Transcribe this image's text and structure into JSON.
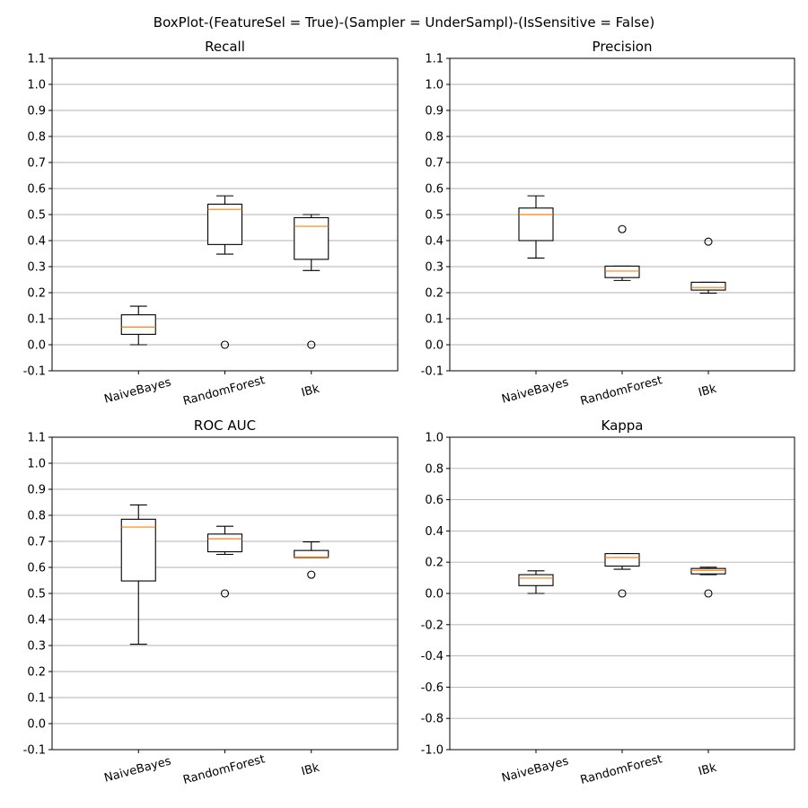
{
  "figure": {
    "title": "BoxPlot-(FeatureSel = True)-(Sampler = UnderSampl)-(IsSensitive = False)"
  },
  "chart_data": [
    {
      "type": "box",
      "title": "Recall",
      "categories": [
        "NaiveBayes",
        "RandomForest",
        "IBk"
      ],
      "ylim": [
        -0.1,
        1.1
      ],
      "yticks": [
        -0.1,
        0.0,
        0.1,
        0.2,
        0.3,
        0.4,
        0.5,
        0.6,
        0.7,
        0.8,
        0.9,
        1.0,
        1.1
      ],
      "grid": "y",
      "boxes": [
        {
          "whislo": 0.0,
          "q1": 0.04,
          "med": 0.068,
          "q3": 0.115,
          "whishi": 0.148,
          "fliers": []
        },
        {
          "whislo": 0.348,
          "q1": 0.385,
          "med": 0.52,
          "q3": 0.54,
          "whishi": 0.572,
          "fliers": [
            0.0
          ]
        },
        {
          "whislo": 0.285,
          "q1": 0.328,
          "med": 0.455,
          "q3": 0.488,
          "whishi": 0.5,
          "fliers": [
            0.0
          ]
        }
      ]
    },
    {
      "type": "box",
      "title": "Precision",
      "categories": [
        "NaiveBayes",
        "RandomForest",
        "IBk"
      ],
      "ylim": [
        -0.1,
        1.1
      ],
      "yticks": [
        -0.1,
        0.0,
        0.1,
        0.2,
        0.3,
        0.4,
        0.5,
        0.6,
        0.7,
        0.8,
        0.9,
        1.0,
        1.1
      ],
      "grid": "y",
      "boxes": [
        {
          "whislo": 0.333,
          "q1": 0.4,
          "med": 0.5,
          "q3": 0.525,
          "whishi": 0.572,
          "fliers": []
        },
        {
          "whislo": 0.247,
          "q1": 0.258,
          "med": 0.283,
          "q3": 0.302,
          "whishi": 0.302,
          "fliers": [
            0.444
          ]
        },
        {
          "whislo": 0.198,
          "q1": 0.21,
          "med": 0.22,
          "q3": 0.24,
          "whishi": 0.24,
          "fliers": [
            0.396
          ]
        }
      ]
    },
    {
      "type": "box",
      "title": "ROC AUC",
      "categories": [
        "NaiveBayes",
        "RandomForest",
        "IBk"
      ],
      "ylim": [
        -0.1,
        1.1
      ],
      "yticks": [
        -0.1,
        0.0,
        0.1,
        0.2,
        0.3,
        0.4,
        0.5,
        0.6,
        0.7,
        0.8,
        0.9,
        1.0,
        1.1
      ],
      "grid": "y",
      "boxes": [
        {
          "whislo": 0.305,
          "q1": 0.548,
          "med": 0.755,
          "q3": 0.785,
          "whishi": 0.84,
          "fliers": []
        },
        {
          "whislo": 0.65,
          "q1": 0.66,
          "med": 0.71,
          "q3": 0.728,
          "whishi": 0.758,
          "fliers": [
            0.5
          ]
        },
        {
          "whislo": 0.638,
          "q1": 0.638,
          "med": 0.64,
          "q3": 0.665,
          "whishi": 0.698,
          "fliers": [
            0.572
          ]
        }
      ]
    },
    {
      "type": "box",
      "title": "Kappa",
      "categories": [
        "NaiveBayes",
        "RandomForest",
        "IBk"
      ],
      "ylim": [
        -1.0,
        1.0
      ],
      "yticks": [
        -1.0,
        -0.8,
        -0.6,
        -0.4,
        -0.2,
        0.0,
        0.2,
        0.4,
        0.6,
        0.8,
        1.0
      ],
      "grid": "y",
      "boxes": [
        {
          "whislo": 0.0,
          "q1": 0.05,
          "med": 0.098,
          "q3": 0.12,
          "whishi": 0.145,
          "fliers": []
        },
        {
          "whislo": 0.155,
          "q1": 0.175,
          "med": 0.23,
          "q3": 0.255,
          "whishi": 0.255,
          "fliers": [
            0.0
          ]
        },
        {
          "whislo": 0.12,
          "q1": 0.125,
          "med": 0.148,
          "q3": 0.16,
          "whishi": 0.168,
          "fliers": [
            0.0
          ]
        }
      ]
    }
  ]
}
